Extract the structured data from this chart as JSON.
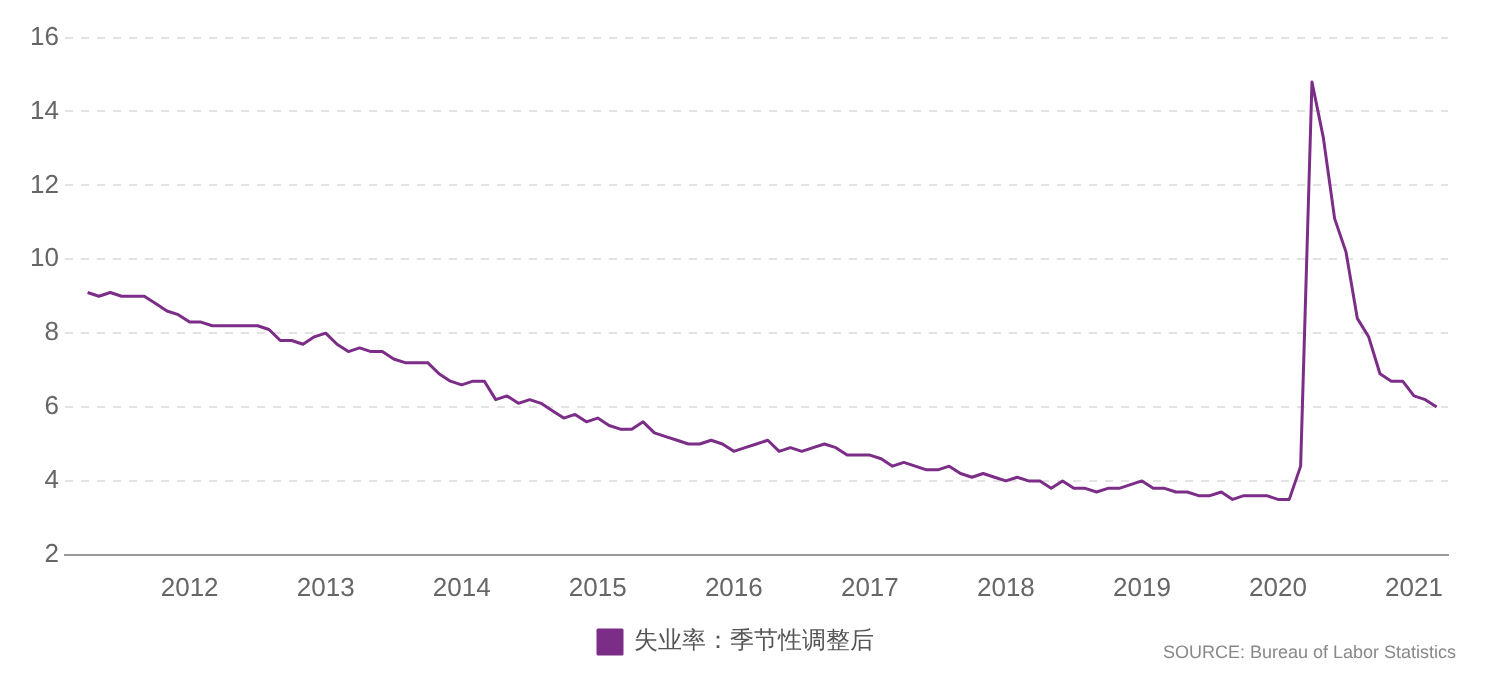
{
  "chart_data": {
    "type": "line",
    "x": [
      "2011-04",
      "2011-05",
      "2011-06",
      "2011-07",
      "2011-08",
      "2011-09",
      "2011-10",
      "2011-11",
      "2011-12",
      "2012-01",
      "2012-02",
      "2012-03",
      "2012-04",
      "2012-05",
      "2012-06",
      "2012-07",
      "2012-08",
      "2012-09",
      "2012-10",
      "2012-11",
      "2012-12",
      "2013-01",
      "2013-02",
      "2013-03",
      "2013-04",
      "2013-05",
      "2013-06",
      "2013-07",
      "2013-08",
      "2013-09",
      "2013-10",
      "2013-11",
      "2013-12",
      "2014-01",
      "2014-02",
      "2014-03",
      "2014-04",
      "2014-05",
      "2014-06",
      "2014-07",
      "2014-08",
      "2014-09",
      "2014-10",
      "2014-11",
      "2014-12",
      "2015-01",
      "2015-02",
      "2015-03",
      "2015-04",
      "2015-05",
      "2015-06",
      "2015-07",
      "2015-08",
      "2015-09",
      "2015-10",
      "2015-11",
      "2015-12",
      "2016-01",
      "2016-02",
      "2016-03",
      "2016-04",
      "2016-05",
      "2016-06",
      "2016-07",
      "2016-08",
      "2016-09",
      "2016-10",
      "2016-11",
      "2016-12",
      "2017-01",
      "2017-02",
      "2017-03",
      "2017-04",
      "2017-05",
      "2017-06",
      "2017-07",
      "2017-08",
      "2017-09",
      "2017-10",
      "2017-11",
      "2017-12",
      "2018-01",
      "2018-02",
      "2018-03",
      "2018-04",
      "2018-05",
      "2018-06",
      "2018-07",
      "2018-08",
      "2018-09",
      "2018-10",
      "2018-11",
      "2018-12",
      "2019-01",
      "2019-02",
      "2019-03",
      "2019-04",
      "2019-05",
      "2019-06",
      "2019-07",
      "2019-08",
      "2019-09",
      "2019-10",
      "2019-11",
      "2019-12",
      "2020-01",
      "2020-02",
      "2020-03",
      "2020-04",
      "2020-05",
      "2020-06",
      "2020-07",
      "2020-08",
      "2020-09",
      "2020-10",
      "2020-11",
      "2020-12",
      "2021-01",
      "2021-02",
      "2021-03"
    ],
    "series": [
      {
        "name": "失业率：季节性调整后",
        "color": "#7b2d87",
        "values": [
          9.1,
          9.0,
          9.1,
          9.0,
          9.0,
          9.0,
          8.8,
          8.6,
          8.5,
          8.3,
          8.3,
          8.2,
          8.2,
          8.2,
          8.2,
          8.2,
          8.1,
          7.8,
          7.8,
          7.7,
          7.9,
          8.0,
          7.7,
          7.5,
          7.6,
          7.5,
          7.5,
          7.3,
          7.2,
          7.2,
          7.2,
          6.9,
          6.7,
          6.6,
          6.7,
          6.7,
          6.2,
          6.3,
          6.1,
          6.2,
          6.1,
          5.9,
          5.7,
          5.8,
          5.6,
          5.7,
          5.5,
          5.4,
          5.4,
          5.6,
          5.3,
          5.2,
          5.1,
          5.0,
          5.0,
          5.1,
          5.0,
          4.8,
          4.9,
          5.0,
          5.1,
          4.8,
          4.9,
          4.8,
          4.9,
          5.0,
          4.9,
          4.7,
          4.7,
          4.7,
          4.6,
          4.4,
          4.5,
          4.4,
          4.3,
          4.3,
          4.4,
          4.2,
          4.1,
          4.2,
          4.1,
          4.0,
          4.1,
          4.0,
          4.0,
          3.8,
          4.0,
          3.8,
          3.8,
          3.7,
          3.8,
          3.8,
          3.9,
          4.0,
          3.8,
          3.8,
          3.7,
          3.7,
          3.6,
          3.6,
          3.7,
          3.5,
          3.6,
          3.6,
          3.6,
          3.5,
          3.5,
          4.4,
          14.8,
          13.3,
          11.1,
          10.2,
          8.4,
          7.9,
          6.9,
          6.7,
          6.7,
          6.3,
          6.2,
          6.0
        ]
      }
    ],
    "xlim": [
      "2011-02",
      "2021-04"
    ],
    "xticks": [
      "2012",
      "2013",
      "2014",
      "2015",
      "2016",
      "2017",
      "2018",
      "2019",
      "2020",
      "2021"
    ],
    "ylim": [
      2,
      16
    ],
    "yticks": [
      2,
      4,
      6,
      8,
      10,
      12,
      14,
      16
    ],
    "grid": "y",
    "legend": "bottom",
    "marker": "none",
    "line_style": "solid",
    "annotations": [
      "SOURCE: Bureau of Labor Statistics"
    ]
  }
}
